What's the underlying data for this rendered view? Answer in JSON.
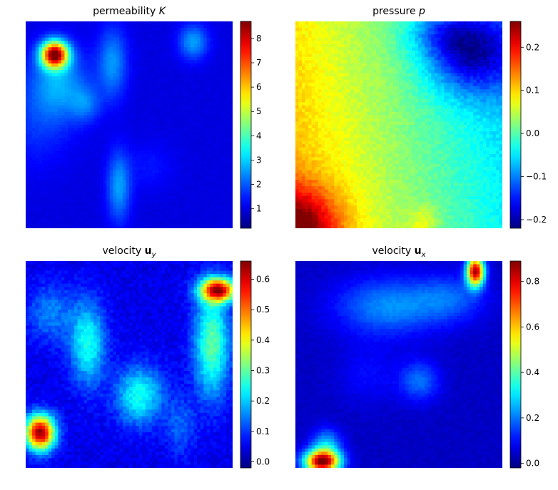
{
  "colormap": "jet",
  "chart_data": [
    {
      "type": "heatmap",
      "title_text": "permeability ",
      "title_symbol": "K",
      "title_subscript": "",
      "colorbar": {
        "vmin": 0.2,
        "vmax": 8.7,
        "ticks": [
          1,
          2,
          3,
          4,
          5,
          6,
          7,
          8
        ],
        "tick_labels": [
          "1",
          "2",
          "3",
          "4",
          "5",
          "6",
          "7",
          "8"
        ]
      },
      "grid": "64x64",
      "blobs": [
        {
          "x": 0.14,
          "y": 0.16,
          "sx": 0.045,
          "sy": 0.045,
          "amp": 7.5
        },
        {
          "x": 0.16,
          "y": 0.3,
          "sx": 0.1,
          "sy": 0.12,
          "amp": 1.6
        },
        {
          "x": 0.42,
          "y": 0.2,
          "sx": 0.05,
          "sy": 0.12,
          "amp": 1.5
        },
        {
          "x": 0.81,
          "y": 0.1,
          "sx": 0.05,
          "sy": 0.06,
          "amp": 1.6
        },
        {
          "x": 0.29,
          "y": 0.4,
          "sx": 0.05,
          "sy": 0.06,
          "amp": 1.0
        },
        {
          "x": 0.45,
          "y": 0.8,
          "sx": 0.04,
          "sy": 0.12,
          "amp": 1.6
        },
        {
          "x": 0.05,
          "y": 0.5,
          "sx": 0.12,
          "sy": 0.15,
          "amp": 0.6
        },
        {
          "x": 0.6,
          "y": 0.7,
          "sx": 0.08,
          "sy": 0.08,
          "amp": 0.4
        }
      ],
      "base": 1.0,
      "noise": 0.05
    },
    {
      "type": "heatmap",
      "title_text": "pressure ",
      "title_symbol": "p",
      "title_subscript": "",
      "colorbar": {
        "vmin": -0.22,
        "vmax": 0.26,
        "ticks": [
          -0.2,
          -0.1,
          0.0,
          0.1,
          0.2
        ],
        "tick_labels": [
          "−0.2",
          "−0.1",
          "0.0",
          "0.1",
          "0.2"
        ]
      },
      "grid": "64x64",
      "gradient": {
        "c0": 0.09,
        "cx": -0.16,
        "cy": 0.03
      },
      "blobs": [
        {
          "x": 0.0,
          "y": 1.0,
          "sx": 0.15,
          "sy": 0.14,
          "amp": 0.18
        },
        {
          "x": 0.85,
          "y": 0.15,
          "sx": 0.15,
          "sy": 0.14,
          "amp": -0.16
        },
        {
          "x": 0.7,
          "y": 0.05,
          "sx": 0.12,
          "sy": 0.08,
          "amp": -0.06
        },
        {
          "x": 0.62,
          "y": 0.98,
          "sx": 0.05,
          "sy": 0.06,
          "amp": 0.05
        }
      ],
      "base": 0.0,
      "noise": 0.012
    },
    {
      "type": "heatmap",
      "title_text": "velocity ",
      "title_symbol": "u",
      "title_subscript": "y",
      "colorbar": {
        "vmin": -0.02,
        "vmax": 0.66,
        "ticks": [
          0.0,
          0.1,
          0.2,
          0.3,
          0.4,
          0.5,
          0.6
        ],
        "tick_labels": [
          "0.0",
          "0.1",
          "0.2",
          "0.3",
          "0.4",
          "0.5",
          "0.6"
        ]
      },
      "grid": "64x64",
      "blobs": [
        {
          "x": 0.93,
          "y": 0.14,
          "sx": 0.06,
          "sy": 0.04,
          "amp": 0.55
        },
        {
          "x": 0.9,
          "y": 0.4,
          "sx": 0.06,
          "sy": 0.18,
          "amp": 0.25
        },
        {
          "x": 0.07,
          "y": 0.83,
          "sx": 0.05,
          "sy": 0.06,
          "amp": 0.6
        },
        {
          "x": 0.3,
          "y": 0.4,
          "sx": 0.06,
          "sy": 0.14,
          "amp": 0.2
        },
        {
          "x": 0.55,
          "y": 0.65,
          "sx": 0.08,
          "sy": 0.1,
          "amp": 0.2
        },
        {
          "x": 0.12,
          "y": 0.25,
          "sx": 0.08,
          "sy": 0.1,
          "amp": 0.1
        },
        {
          "x": 0.75,
          "y": 0.8,
          "sx": 0.05,
          "sy": 0.1,
          "amp": 0.08
        }
      ],
      "base": 0.05,
      "noise": 0.02
    },
    {
      "type": "heatmap",
      "title_text": "velocity ",
      "title_symbol": "u",
      "title_subscript": "x",
      "colorbar": {
        "vmin": -0.02,
        "vmax": 0.89,
        "ticks": [
          0.0,
          0.2,
          0.4,
          0.6,
          0.8
        ],
        "tick_labels": [
          "0.0",
          "0.2",
          "0.4",
          "0.6",
          "0.8"
        ]
      },
      "grid": "64x64",
      "blobs": [
        {
          "x": 0.87,
          "y": 0.05,
          "sx": 0.03,
          "sy": 0.05,
          "amp": 0.8
        },
        {
          "x": 0.13,
          "y": 0.97,
          "sx": 0.06,
          "sy": 0.04,
          "amp": 0.85
        },
        {
          "x": 0.45,
          "y": 0.22,
          "sx": 0.18,
          "sy": 0.1,
          "amp": 0.18
        },
        {
          "x": 0.75,
          "y": 0.18,
          "sx": 0.12,
          "sy": 0.08,
          "amp": 0.12
        },
        {
          "x": 0.6,
          "y": 0.58,
          "sx": 0.07,
          "sy": 0.07,
          "amp": 0.15
        },
        {
          "x": 0.35,
          "y": 0.55,
          "sx": 0.1,
          "sy": 0.1,
          "amp": 0.06
        },
        {
          "x": 0.15,
          "y": 0.88,
          "sx": 0.05,
          "sy": 0.05,
          "amp": 0.2
        }
      ],
      "base": 0.04,
      "noise": 0.01
    }
  ]
}
